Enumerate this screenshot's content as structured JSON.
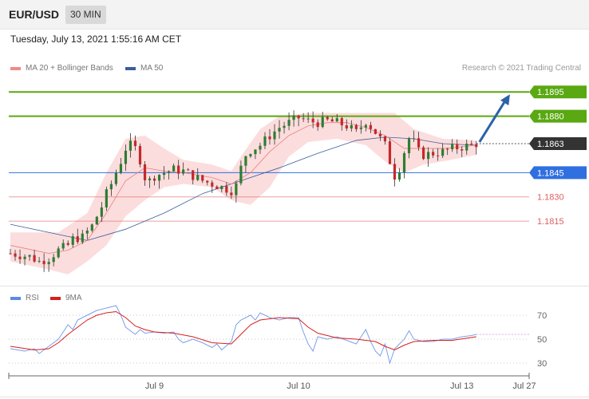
{
  "header": {
    "pair": "EUR/USD",
    "timeframe": "30 MIN"
  },
  "datetime": "Tuesday, July 13, 2021 1:55:16 AM CET",
  "legend": {
    "ma20": {
      "label": "MA 20 + Bollinger Bands",
      "color": "#f08a8a"
    },
    "ma50": {
      "label": "MA 50",
      "color": "#3b5e9c"
    }
  },
  "copyright": "Research © 2021 Trading Central",
  "rsi_legend": {
    "rsi": {
      "label": "RSI",
      "color": "#5b8be0"
    },
    "ma9": {
      "label": "9MA",
      "color": "#d81e1e"
    }
  },
  "chart_data": [
    {
      "type": "candlestick",
      "ylim": [
        1.1775,
        1.1905
      ],
      "levels": [
        {
          "value": 1.1895,
          "label": "1.1895",
          "kind": "resistance",
          "color": "#5aa812"
        },
        {
          "value": 1.188,
          "label": "1.1880",
          "kind": "resistance",
          "color": "#5aa812"
        },
        {
          "value": 1.1863,
          "label": "1.1863",
          "kind": "last",
          "color": "#333333"
        },
        {
          "value": 1.1845,
          "label": "1.1845",
          "kind": "pivot",
          "color": "#2f6fe0"
        },
        {
          "value": 1.183,
          "label": "1.1830",
          "kind": "support",
          "color": "#e06060"
        },
        {
          "value": 1.1815,
          "label": "1.1815",
          "kind": "support",
          "color": "#e06060"
        }
      ],
      "close_path": [
        [
          0,
          1.1795
        ],
        [
          4,
          1.1793
        ],
        [
          6,
          1.179
        ],
        [
          8,
          1.1792
        ],
        [
          10,
          1.1797
        ],
        [
          12,
          1.18
        ],
        [
          13,
          1.1804
        ],
        [
          15,
          1.1805
        ],
        [
          17,
          1.1812
        ],
        [
          18,
          1.1818
        ],
        [
          19,
          1.1824
        ],
        [
          20,
          1.1832
        ],
        [
          21,
          1.1838
        ],
        [
          22,
          1.1845
        ],
        [
          23,
          1.1852
        ],
        [
          24,
          1.186
        ],
        [
          25,
          1.1862
        ],
        [
          26,
          1.186
        ],
        [
          27,
          1.1853
        ],
        [
          28,
          1.1842
        ],
        [
          29,
          1.184
        ],
        [
          30,
          1.1843
        ],
        [
          32,
          1.1845
        ],
        [
          34,
          1.1847
        ],
        [
          36,
          1.1846
        ],
        [
          38,
          1.1843
        ],
        [
          40,
          1.184
        ],
        [
          42,
          1.1838
        ],
        [
          44,
          1.1836
        ],
        [
          46,
          1.1834
        ],
        [
          47,
          1.1837
        ],
        [
          48,
          1.1848
        ],
        [
          49,
          1.1856
        ],
        [
          50,
          1.1859
        ],
        [
          52,
          1.1862
        ],
        [
          54,
          1.1868
        ],
        [
          56,
          1.1873
        ],
        [
          58,
          1.1876
        ],
        [
          60,
          1.1879
        ],
        [
          62,
          1.1877
        ],
        [
          64,
          1.1876
        ],
        [
          66,
          1.1877
        ],
        [
          68,
          1.1876
        ],
        [
          70,
          1.1874
        ],
        [
          72,
          1.187
        ],
        [
          74,
          1.1877
        ],
        [
          76,
          1.187
        ],
        [
          78,
          1.1862
        ],
        [
          79,
          1.1852
        ],
        [
          80,
          1.1843
        ],
        [
          81,
          1.1848
        ],
        [
          82,
          1.1858
        ],
        [
          83,
          1.1866
        ],
        [
          84,
          1.1864
        ],
        [
          85,
          1.1858
        ],
        [
          86,
          1.1856
        ],
        [
          88,
          1.1857
        ],
        [
          90,
          1.1858
        ],
        [
          92,
          1.186
        ],
        [
          94,
          1.1861
        ],
        [
          96,
          1.1862
        ],
        [
          97,
          1.1863
        ]
      ],
      "ma20_path": [
        [
          0,
          1.18
        ],
        [
          8,
          1.1795
        ],
        [
          12,
          1.1797
        ],
        [
          16,
          1.1803
        ],
        [
          20,
          1.182
        ],
        [
          24,
          1.184
        ],
        [
          28,
          1.1848
        ],
        [
          32,
          1.1846
        ],
        [
          36,
          1.1845
        ],
        [
          42,
          1.1842
        ],
        [
          46,
          1.1838
        ],
        [
          50,
          1.1845
        ],
        [
          54,
          1.1858
        ],
        [
          58,
          1.1868
        ],
        [
          62,
          1.1874
        ],
        [
          66,
          1.1876
        ],
        [
          70,
          1.1876
        ],
        [
          74,
          1.1873
        ],
        [
          78,
          1.1868
        ],
        [
          82,
          1.186
        ],
        [
          86,
          1.186
        ],
        [
          90,
          1.186
        ],
        [
          94,
          1.1861
        ],
        [
          97,
          1.1862
        ]
      ],
      "ma50_path": [
        [
          0,
          1.1813
        ],
        [
          8,
          1.1808
        ],
        [
          16,
          1.1803
        ],
        [
          24,
          1.181
        ],
        [
          32,
          1.182
        ],
        [
          40,
          1.1832
        ],
        [
          48,
          1.184
        ],
        [
          56,
          1.1848
        ],
        [
          64,
          1.1857
        ],
        [
          72,
          1.1865
        ],
        [
          78,
          1.1867
        ],
        [
          84,
          1.1866
        ],
        [
          90,
          1.1863
        ],
        [
          97,
          1.1862
        ]
      ],
      "bb_upper": [
        [
          0,
          1.1808
        ],
        [
          10,
          1.1808
        ],
        [
          16,
          1.182
        ],
        [
          20,
          1.1845
        ],
        [
          24,
          1.1866
        ],
        [
          28,
          1.1868
        ],
        [
          32,
          1.186
        ],
        [
          36,
          1.1853
        ],
        [
          42,
          1.185
        ],
        [
          46,
          1.1846
        ],
        [
          48,
          1.1855
        ],
        [
          52,
          1.1872
        ],
        [
          56,
          1.188
        ],
        [
          62,
          1.1882
        ],
        [
          68,
          1.1882
        ],
        [
          74,
          1.1882
        ],
        [
          80,
          1.1882
        ],
        [
          84,
          1.1872
        ],
        [
          90,
          1.1866
        ],
        [
          97,
          1.1865
        ]
      ],
      "bb_lower": [
        [
          0,
          1.179
        ],
        [
          8,
          1.1785
        ],
        [
          12,
          1.1782
        ],
        [
          16,
          1.179
        ],
        [
          20,
          1.18
        ],
        [
          24,
          1.1818
        ],
        [
          28,
          1.1828
        ],
        [
          32,
          1.1836
        ],
        [
          36,
          1.1838
        ],
        [
          42,
          1.1836
        ],
        [
          46,
          1.1828
        ],
        [
          50,
          1.1825
        ],
        [
          54,
          1.1836
        ],
        [
          58,
          1.1855
        ],
        [
          62,
          1.1864
        ],
        [
          68,
          1.1866
        ],
        [
          74,
          1.1862
        ],
        [
          78,
          1.1852
        ],
        [
          82,
          1.1845
        ],
        [
          86,
          1.185
        ],
        [
          90,
          1.1852
        ],
        [
          97,
          1.1856
        ]
      ],
      "target_arrow": {
        "from": [
          97,
          1.1863
        ],
        "to": [
          104,
          1.1895
        ]
      },
      "x_count": 120
    },
    {
      "type": "line",
      "ylim": [
        20,
        80
      ],
      "ticks": [
        70,
        50,
        30
      ],
      "x_labels": [
        {
          "label": "Jul 9",
          "x": 30
        },
        {
          "label": "Jul 10",
          "x": 60
        },
        {
          "label": "Jul 13",
          "x": 94
        },
        {
          "label": "Jul 27",
          "x": 107
        }
      ],
      "rsi": [
        [
          0,
          42
        ],
        [
          3,
          40
        ],
        [
          5,
          42
        ],
        [
          6,
          38
        ],
        [
          8,
          44
        ],
        [
          10,
          50
        ],
        [
          11,
          56
        ],
        [
          12,
          62
        ],
        [
          13,
          58
        ],
        [
          14,
          66
        ],
        [
          16,
          70
        ],
        [
          18,
          74
        ],
        [
          20,
          76
        ],
        [
          22,
          78
        ],
        [
          23,
          70
        ],
        [
          24,
          60
        ],
        [
          26,
          54
        ],
        [
          27,
          58
        ],
        [
          28,
          55
        ],
        [
          30,
          56
        ],
        [
          32,
          55
        ],
        [
          34,
          56
        ],
        [
          35,
          50
        ],
        [
          36,
          47
        ],
        [
          38,
          50
        ],
        [
          40,
          47
        ],
        [
          42,
          43
        ],
        [
          43,
          46
        ],
        [
          44,
          41
        ],
        [
          46,
          48
        ],
        [
          47,
          62
        ],
        [
          48,
          66
        ],
        [
          50,
          70
        ],
        [
          51,
          66
        ],
        [
          52,
          72
        ],
        [
          54,
          68
        ],
        [
          56,
          66
        ],
        [
          58,
          68
        ],
        [
          60,
          68
        ],
        [
          61,
          56
        ],
        [
          62,
          46
        ],
        [
          63,
          40
        ],
        [
          64,
          52
        ],
        [
          66,
          50
        ],
        [
          68,
          52
        ],
        [
          70,
          49
        ],
        [
          72,
          46
        ],
        [
          74,
          58
        ],
        [
          75,
          48
        ],
        [
          76,
          40
        ],
        [
          77,
          36
        ],
        [
          78,
          46
        ],
        [
          79,
          30
        ],
        [
          80,
          42
        ],
        [
          82,
          50
        ],
        [
          83,
          57
        ],
        [
          84,
          50
        ],
        [
          86,
          48
        ],
        [
          88,
          48
        ],
        [
          90,
          50
        ],
        [
          92,
          50
        ],
        [
          94,
          52
        ],
        [
          96,
          53
        ],
        [
          97,
          54
        ]
      ],
      "ma9": [
        [
          0,
          44
        ],
        [
          5,
          41
        ],
        [
          8,
          42
        ],
        [
          10,
          47
        ],
        [
          12,
          54
        ],
        [
          14,
          60
        ],
        [
          16,
          66
        ],
        [
          18,
          70
        ],
        [
          20,
          72
        ],
        [
          22,
          73
        ],
        [
          24,
          68
        ],
        [
          26,
          61
        ],
        [
          28,
          58
        ],
        [
          30,
          56
        ],
        [
          34,
          55
        ],
        [
          38,
          52
        ],
        [
          42,
          47
        ],
        [
          46,
          46
        ],
        [
          48,
          54
        ],
        [
          50,
          62
        ],
        [
          52,
          66
        ],
        [
          56,
          68
        ],
        [
          60,
          67
        ],
        [
          62,
          60
        ],
        [
          64,
          55
        ],
        [
          68,
          51
        ],
        [
          72,
          50
        ],
        [
          76,
          48
        ],
        [
          78,
          44
        ],
        [
          80,
          41
        ],
        [
          82,
          45
        ],
        [
          84,
          48
        ],
        [
          88,
          49
        ],
        [
          92,
          49
        ],
        [
          97,
          52
        ]
      ]
    }
  ]
}
